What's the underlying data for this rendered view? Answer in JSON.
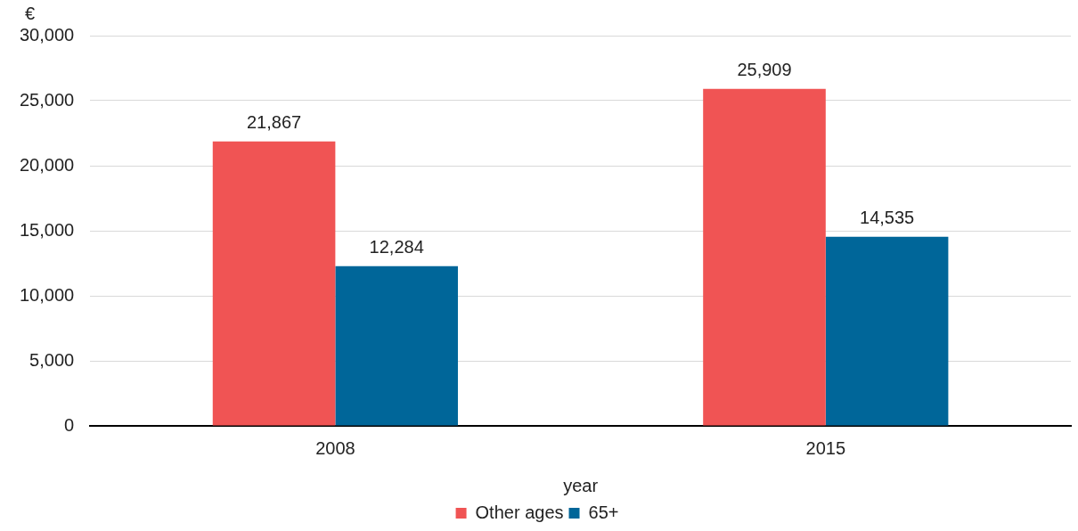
{
  "chart_data": {
    "type": "bar",
    "ylabel": "€",
    "xlabel": "year",
    "categories": [
      "2008",
      "2015"
    ],
    "series": [
      {
        "name": "Other ages",
        "color": "#f05454",
        "values": [
          21867,
          25909
        ],
        "value_labels": [
          "21,867",
          "25,909"
        ]
      },
      {
        "name": "65+",
        "color": "#006699",
        "values": [
          12284,
          14535
        ],
        "value_labels": [
          "12,284",
          "14,535"
        ]
      }
    ],
    "ylim": [
      0,
      30000
    ],
    "yticks": [
      0,
      {
        "value": 5000,
        "label": "5,000"
      },
      {
        "value": 10000,
        "label": "10,000"
      },
      {
        "value": 15000,
        "label": "15,000"
      },
      {
        "value": 20000,
        "label": "20,000"
      },
      {
        "value": 25000,
        "label": "25,000"
      },
      {
        "value": 30000,
        "label": "30,000"
      }
    ],
    "grid": "y",
    "legend": "bottom"
  }
}
